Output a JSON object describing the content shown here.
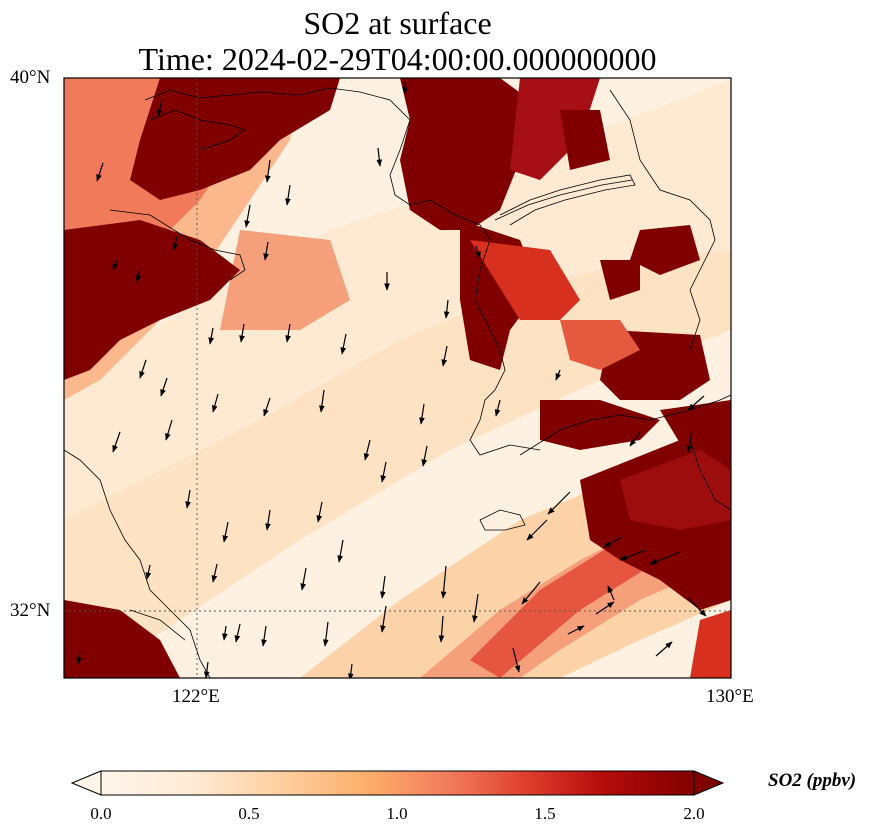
{
  "title": {
    "line1": "SO2 at surface",
    "line2": "Time: 2024-02-29T04:00:00.000000000"
  },
  "axes": {
    "lat_ticks": [
      {
        "value": 40,
        "label": "40°N"
      },
      {
        "value": 32,
        "label": "32°N"
      }
    ],
    "lon_ticks": [
      {
        "value": 122,
        "label": "122°E"
      },
      {
        "value": 130,
        "label": "130°E"
      }
    ],
    "lon_range": [
      120,
      130
    ],
    "lat_range": [
      31,
      40
    ],
    "gridlines": "dotted"
  },
  "colorbar": {
    "label": "SO2 (ppbv)",
    "ticks": [
      "0.0",
      "0.5",
      "1.0",
      "1.5",
      "2.0"
    ],
    "range": [
      0,
      2
    ],
    "extend": "both",
    "colors": [
      "#fff5eb",
      "#fee6ce",
      "#fdd0a2",
      "#fdae6b",
      "#f16913",
      "#d94801",
      "#a50f15",
      "#7f0000"
    ]
  },
  "map": {
    "field": "SO2 surface concentration",
    "features": [
      "coastlines",
      "country borders",
      "wind vectors"
    ],
    "max_color": "#800000",
    "min_color": "#fff5eb"
  }
}
